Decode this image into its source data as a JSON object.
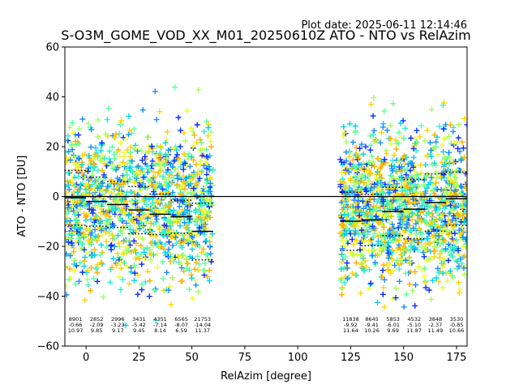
{
  "chart_data": {
    "type": "scatter",
    "plot_date": "Plot date: 2025-06-11 12:14:46",
    "title": "S-O3M_GOME_VOD_XX_M01_20250610Z ATO - NTO vs RelAzim",
    "xlabel": "RelAzim [degree]",
    "ylabel": "ATO - NTO [DU]",
    "xlim": [
      -10,
      180
    ],
    "ylim": [
      -60,
      60
    ],
    "xticks": [
      0,
      25,
      50,
      75,
      100,
      125,
      150,
      175
    ],
    "yticks": [
      -60,
      -40,
      -20,
      0,
      20,
      40,
      60
    ],
    "grid": false,
    "zero_line": 0,
    "colors": [
      "#0a2cff",
      "#1a8cff",
      "#00d2f0",
      "#2ef0d0",
      "#5dff9a",
      "#a6ff5a",
      "#e8ff2e",
      "#ffd400",
      "#ffb000"
    ],
    "point_clusters": [
      {
        "x_range": [
          -10,
          60
        ],
        "center": -3,
        "spread": 18
      },
      {
        "x_range": [
          120,
          180
        ],
        "center": -4,
        "spread": 18
      }
    ],
    "bins": [
      {
        "x": -5,
        "count": "8901",
        "mean": "-0.66",
        "std": "10.97",
        "median": -0.5,
        "q_high": 10.5,
        "q_low": -11.5
      },
      {
        "x": 5,
        "count": "2852",
        "mean": "-2.09",
        "std": "9.85",
        "median": -2,
        "q_high": 7.8,
        "q_low": -11.9
      },
      {
        "x": 15,
        "count": "2996",
        "mean": "-3.23",
        "std": "9.17",
        "median": -3.2,
        "q_high": 6,
        "q_low": -12.4
      },
      {
        "x": 25,
        "count": "3431",
        "mean": "-5.42",
        "std": "9.45",
        "median": -5.4,
        "q_high": 4,
        "q_low": -14.9
      },
      {
        "x": 35,
        "count": "4351",
        "mean": "-7.14",
        "std": "8.14",
        "median": -7.1,
        "q_high": 1,
        "q_low": -15.3
      },
      {
        "x": 45,
        "count": "6565",
        "mean": "-8.07",
        "std": "6.59",
        "median": -8.1,
        "q_high": -1.5,
        "q_low": -14.7
      },
      {
        "x": 55,
        "count": "21753",
        "mean": "-14.04",
        "std": "11.37",
        "median": -14,
        "q_high": -2.7,
        "q_low": -25.4
      },
      {
        "x": 125,
        "count": "11838",
        "mean": "-9.92",
        "std": "11.64",
        "median": -9.9,
        "q_high": 1.7,
        "q_low": -21.6
      },
      {
        "x": 135,
        "count": "8645",
        "mean": "-9.41",
        "std": "10.26",
        "median": -9.4,
        "q_high": 0.8,
        "q_low": -19.7
      },
      {
        "x": 145,
        "count": "5853",
        "mean": "-6.01",
        "std": "9.69",
        "median": -6,
        "q_high": 3.7,
        "q_low": -15.7
      },
      {
        "x": 155,
        "count": "4532",
        "mean": "-5.10",
        "std": "11.87",
        "median": -5.1,
        "q_high": 6.8,
        "q_low": -17
      },
      {
        "x": 165,
        "count": "3848",
        "mean": "-2.37",
        "std": "11.49",
        "median": -2.4,
        "q_high": 9.1,
        "q_low": -13.9
      },
      {
        "x": 175,
        "count": "3530",
        "mean": "-0.85",
        "std": "10.66",
        "median": -0.9,
        "q_high": 9.8,
        "q_low": -11.5
      }
    ]
  }
}
